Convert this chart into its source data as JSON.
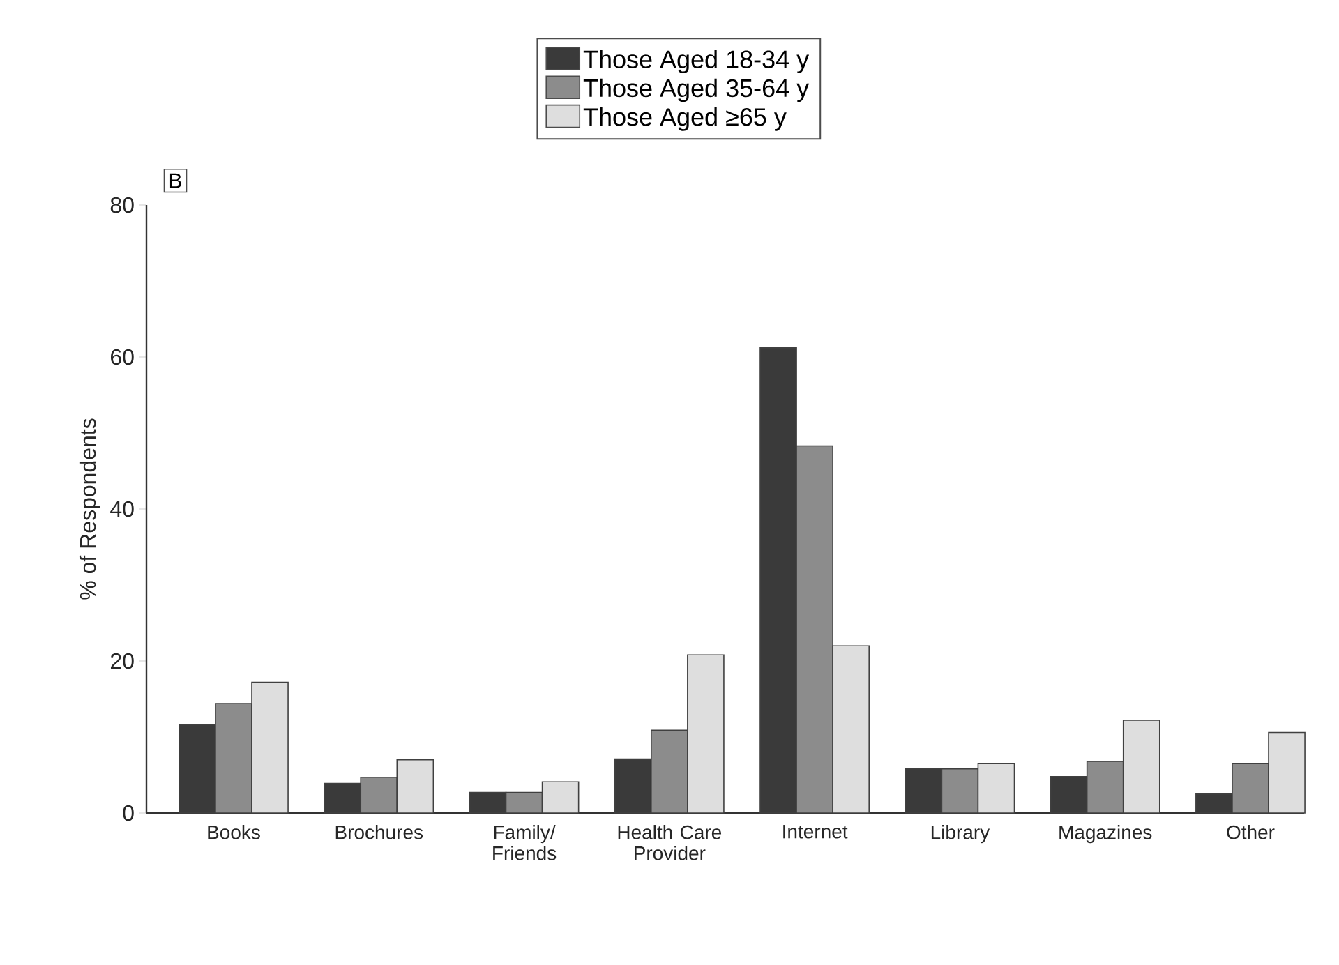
{
  "chart_data": {
    "type": "bar",
    "ylabel": "% of Respondents",
    "annotations": [
      "B"
    ],
    "categories": [
      "Books",
      "Brochures",
      "Family/ Friends",
      "Health Care Provider",
      "Internet",
      "Library",
      "Magazines",
      "Other"
    ],
    "series": [
      {
        "name": "Those Aged 18-34 y",
        "color": "#3a3a3a",
        "values": [
          11.6,
          3.9,
          2.7,
          7.1,
          61.2,
          5.8,
          4.8,
          2.5
        ]
      },
      {
        "name": "Those Aged 35-64 y",
        "color": "#8c8c8c",
        "values": [
          14.4,
          4.7,
          2.7,
          10.9,
          48.3,
          5.8,
          6.8,
          6.5
        ]
      },
      {
        "name": "Those Aged ≥65 y",
        "color": "#dedede",
        "values": [
          17.2,
          7.0,
          4.1,
          20.8,
          22.0,
          6.5,
          12.2,
          10.6
        ]
      }
    ],
    "ylim": [
      0,
      80
    ],
    "yticks": [
      0,
      20,
      40,
      60,
      80
    ],
    "legend": "top"
  }
}
